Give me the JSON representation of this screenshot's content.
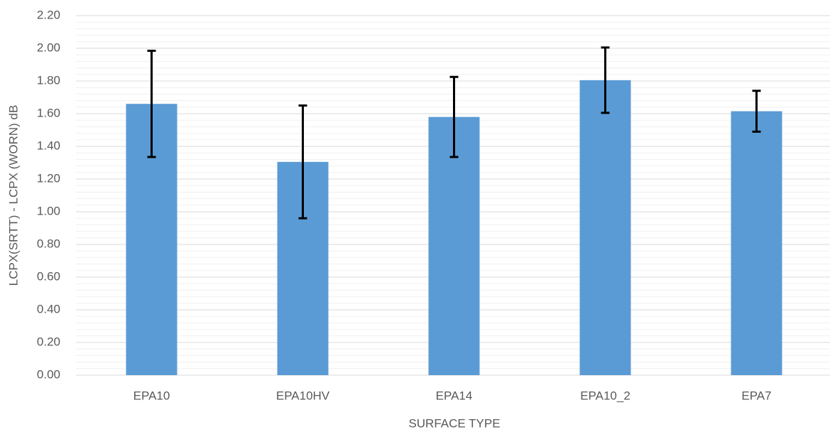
{
  "chart_data": {
    "type": "bar",
    "x_label": "SURFACE TYPE",
    "y_label": "LCPX(SRTT) - LCPX (WORN) dB",
    "categories": [
      "EPA10",
      "EPA10HV",
      "EPA14",
      "EPA10_2",
      "EPA7"
    ],
    "values": [
      1.66,
      1.305,
      1.58,
      1.805,
      1.615
    ],
    "errors": [
      0.325,
      0.345,
      0.245,
      0.2,
      0.125
    ],
    "color": "#5b9bd5",
    "error_color": "#000000",
    "ylim": [
      0,
      2.2
    ],
    "yticks": [
      {
        "value": 0,
        "label": "0.00"
      },
      {
        "value": 0.2,
        "label": "0.20"
      },
      {
        "value": 0.4,
        "label": "0.40"
      },
      {
        "value": 0.6,
        "label": "0.60"
      },
      {
        "value": 0.8,
        "label": "0.80"
      },
      {
        "value": 1,
        "label": "1.00"
      },
      {
        "value": 1.2,
        "label": "1.20"
      },
      {
        "value": 1.4,
        "label": "1.40"
      },
      {
        "value": 1.6,
        "label": "1.60"
      },
      {
        "value": 1.8,
        "label": "1.80"
      },
      {
        "value": 2,
        "label": "2.00"
      },
      {
        "value": 2.2,
        "label": "2.20"
      }
    ],
    "grid": true,
    "minor_grid": 0.04
  }
}
